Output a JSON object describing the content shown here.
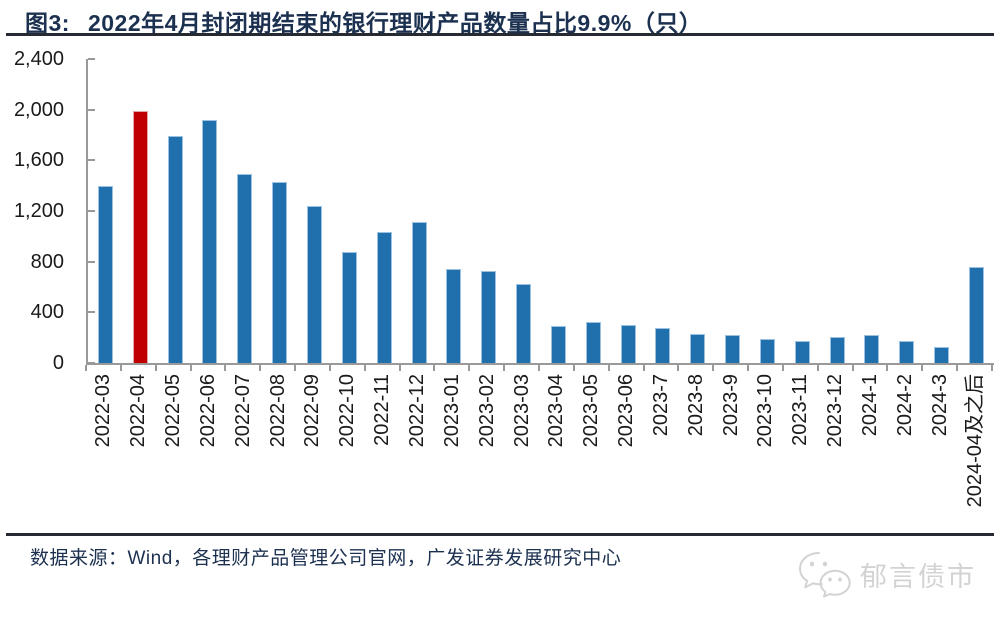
{
  "header": {
    "figure_label": "图3:",
    "title": "2022年4月封闭期结束的银行理财产品数量占比9.9%（只）"
  },
  "chart_data": {
    "type": "bar",
    "title": "2022年4月封闭期结束的银行理财产品数量占比9.9%（只）",
    "categories": [
      "2022-03",
      "2022-04",
      "2022-05",
      "2022-06",
      "2022-07",
      "2022-08",
      "2022-09",
      "2022-10",
      "2022-11",
      "2022-12",
      "2023-01",
      "2023-02",
      "2023-03",
      "2023-04",
      "2023-05",
      "2023-06",
      "2023-7",
      "2023-8",
      "2023-9",
      "2023-10",
      "2023-11",
      "2023-12",
      "2024-1",
      "2024-2",
      "2024-3",
      "2024-04及之后"
    ],
    "values": [
      1400,
      1990,
      1790,
      1915,
      1495,
      1430,
      1240,
      875,
      1035,
      1115,
      740,
      725,
      625,
      290,
      320,
      300,
      280,
      230,
      220,
      190,
      175,
      205,
      225,
      170,
      125,
      760
    ],
    "highlight_index": 1,
    "highlight_category": "2022-04",
    "xlabel": "",
    "ylabel": "",
    "ylim": [
      0,
      2400
    ],
    "yticks": [
      0,
      400,
      800,
      1200,
      1600,
      2000,
      2400
    ],
    "ytick_labels": [
      "0",
      "400",
      "800",
      "1,200",
      "1,600",
      "2,000",
      "2,400"
    ],
    "grid": false,
    "legend": "none",
    "bar_color": "#2070AD",
    "bar_edge": "#9BC2E0",
    "highlight_color": "#C00000",
    "highlight_edge": "#E2A6A6"
  },
  "footer": {
    "source": "数据来源：Wind，各理财产品管理公司官网，广发证券发展研究中心"
  },
  "watermark": {
    "icon": "wechat-icon",
    "text": "郁言债市"
  },
  "colors": {
    "title": "#1C3150",
    "rule": "#262A33",
    "axis": "#999999",
    "tick_label": "#1A1A1A",
    "watermark": "#D3D3D3",
    "background": "#FFFFFF"
  }
}
